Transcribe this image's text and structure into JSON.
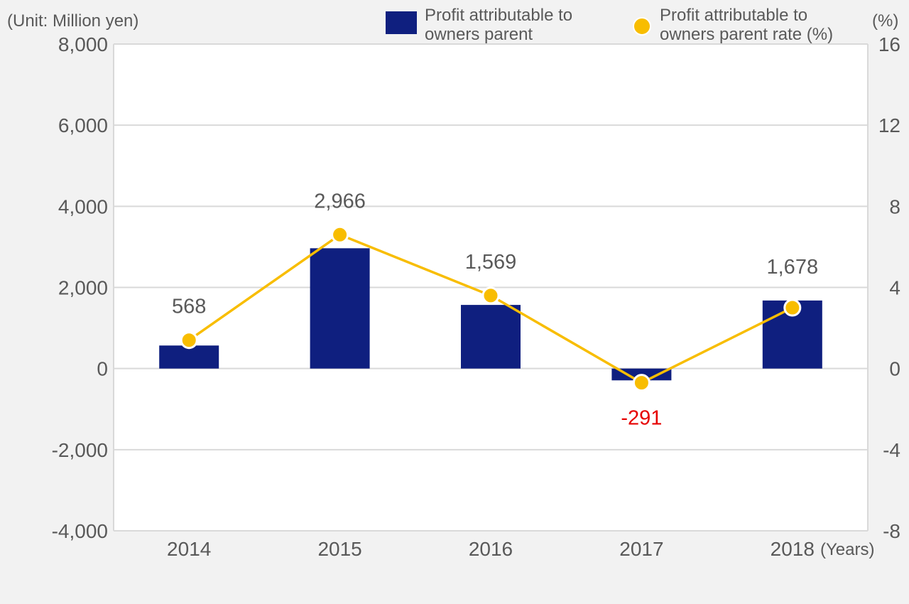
{
  "chart_data": {
    "type": "bar",
    "unit_label": "(Unit: Million yen)",
    "right_unit_label": "(%)",
    "x_unit_label": "(Years)",
    "categories": [
      "2014",
      "2015",
      "2016",
      "2017",
      "2018"
    ],
    "left_axis": {
      "ylim": [
        -4000,
        8000
      ],
      "ticks": [
        "8,000",
        "6,000",
        "4,000",
        "2,000",
        "0",
        "-2,000",
        "-4,000"
      ],
      "tick_values": [
        8000,
        6000,
        4000,
        2000,
        0,
        -2000,
        -4000
      ]
    },
    "right_axis": {
      "ylim": [
        -8,
        16
      ],
      "ticks": [
        "16",
        "12",
        "8",
        "4",
        "0",
        "-4",
        "-8"
      ],
      "tick_values": [
        16,
        12,
        8,
        4,
        0,
        -4,
        -8
      ]
    },
    "series": [
      {
        "name": "Profit attributable to owners parent",
        "name_lines": [
          "Profit attributable to",
          "owners parent"
        ],
        "type": "bar",
        "axis": "left",
        "color": "#0f1f7f",
        "values": [
          568,
          2966,
          1569,
          -291,
          1678
        ],
        "labels": [
          "568",
          "2,966",
          "1,569",
          "-291",
          "1,678"
        ]
      },
      {
        "name": "Profit attributable to owners parent rate (%)",
        "name_lines": [
          "Profit attributable to",
          "owners parent rate (%)"
        ],
        "type": "line",
        "axis": "right",
        "color": "#f8bd00",
        "values": [
          1.4,
          6.6,
          3.6,
          -0.7,
          3.0
        ]
      }
    ],
    "negative_label_color": "#e60000",
    "grid": true
  }
}
